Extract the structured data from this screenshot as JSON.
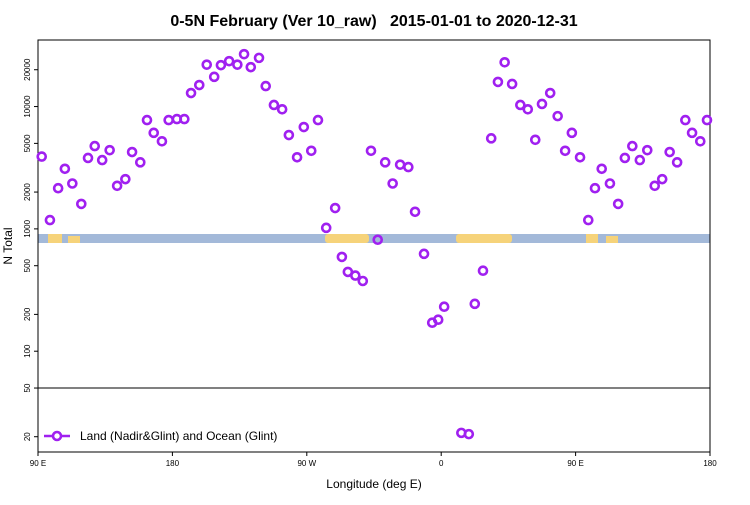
{
  "chart_data": {
    "type": "scatter",
    "title": "0-5N February (Ver 10_raw)   2015-01-01 to 2020-12-31",
    "x_label": "Longitude (deg E)",
    "y_label": "N Total",
    "log_y": true,
    "legend": "bottom left",
    "xlim": [
      90,
      540
    ],
    "ylim": [
      15,
      35000
    ],
    "xticks": [
      {
        "value": 90,
        "label": "90 E"
      },
      180,
      {
        "value": 270,
        "label": "90 W"
      },
      {
        "value": 360,
        "label": "0"
      },
      {
        "value": 450,
        "label": "90 E"
      },
      {
        "value": 540,
        "label": "180"
      }
    ],
    "yticks": [
      20,
      50,
      100,
      200,
      500,
      1000,
      2000,
      5000,
      10000,
      20000
    ],
    "hlines": [
      50
    ],
    "series": [
      {
        "name": "Land (Nadir&Glint) and Ocean (Glint)",
        "color": "#a020f0",
        "x": [
          92.5,
          98,
          103.5,
          108,
          113,
          119,
          123.5,
          128,
          133,
          138,
          143,
          148.5,
          153,
          158.5,
          163,
          167.5,
          173,
          177.5,
          183,
          188,
          192.5,
          198,
          203,
          208,
          212.5,
          218,
          223.5,
          228,
          232.5,
          238,
          242.5,
          248,
          253.5,
          258,
          263.5,
          268,
          273,
          277.5,
          283,
          289,
          293.5,
          297.5,
          302.5,
          307.5,
          313,
          317.5,
          322.5,
          327.5,
          332.5,
          338,
          342.5,
          348.5,
          354,
          358,
          362,
          373.5,
          378.5,
          382.5,
          388,
          393.5,
          398,
          402.5,
          407.5,
          413,
          418,
          423,
          427.5,
          433,
          438,
          443,
          447.5,
          453,
          458.5,
          463,
          467.5,
          473,
          478.5,
          483,
          488,
          493,
          498,
          503,
          508,
          513,
          518,
          523.5,
          528,
          533.5,
          538
        ],
        "values": [
          3900,
          1180,
          2150,
          3100,
          2350,
          1600,
          3800,
          4750,
          3650,
          4400,
          2250,
          2550,
          4250,
          3500,
          7750,
          6100,
          5200,
          7750,
          7900,
          7900,
          12900,
          15000,
          22000,
          17500,
          21800,
          23500,
          22000,
          26800,
          21000,
          25000,
          14700,
          10300,
          9500,
          5850,
          3850,
          6800,
          4350,
          7750,
          1020,
          1480,
          590,
          445,
          415,
          375,
          4350,
          815,
          3500,
          2350,
          3350,
          3200,
          1380,
          625,
          171,
          181,
          231,
          21.5,
          21,
          244,
          455,
          5500,
          15900,
          23000,
          15300,
          10300,
          9500,
          5350,
          10500,
          12900,
          8350,
          4350,
          6100,
          3850,
          1180,
          2150,
          3100,
          2350,
          1600,
          3800,
          4750,
          3650,
          4400,
          2250,
          2550,
          4250,
          3500,
          7750,
          6100,
          5200,
          7750
        ]
      }
    ]
  }
}
